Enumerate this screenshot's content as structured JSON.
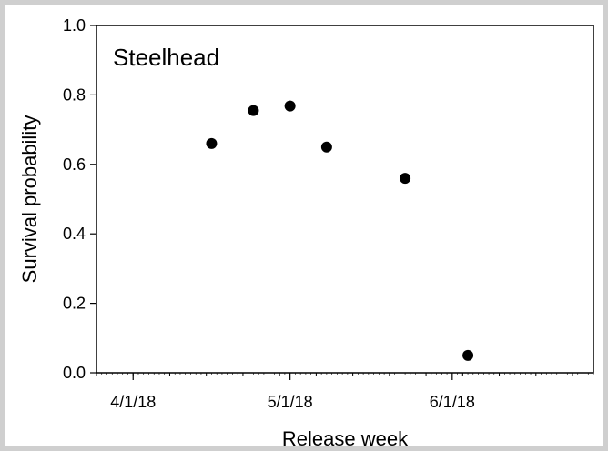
{
  "chart_data": {
    "type": "scatter",
    "title": "Steelhead",
    "xlabel": "Release week",
    "ylabel": "Survival probability",
    "x_ticks": [
      "4/1/18",
      "5/1/18",
      "6/1/18"
    ],
    "y_ticks": [
      "0.0",
      "0.2",
      "0.4",
      "0.6",
      "0.8",
      "1.0"
    ],
    "xlim": [
      "2018-03-25",
      "2018-06-28"
    ],
    "ylim": [
      0,
      1
    ],
    "grid": false,
    "series": [
      {
        "x": [
          "2018-04-16",
          "2018-04-24",
          "2018-05-01",
          "2018-05-08",
          "2018-05-23",
          "2018-06-04"
        ],
        "y": [
          0.66,
          0.755,
          0.768,
          0.65,
          0.56,
          0.05
        ]
      }
    ]
  },
  "colors": {
    "background": "#ffffff",
    "frame": "#c8c8c8",
    "axis": "#000000",
    "marker": "#000000"
  }
}
